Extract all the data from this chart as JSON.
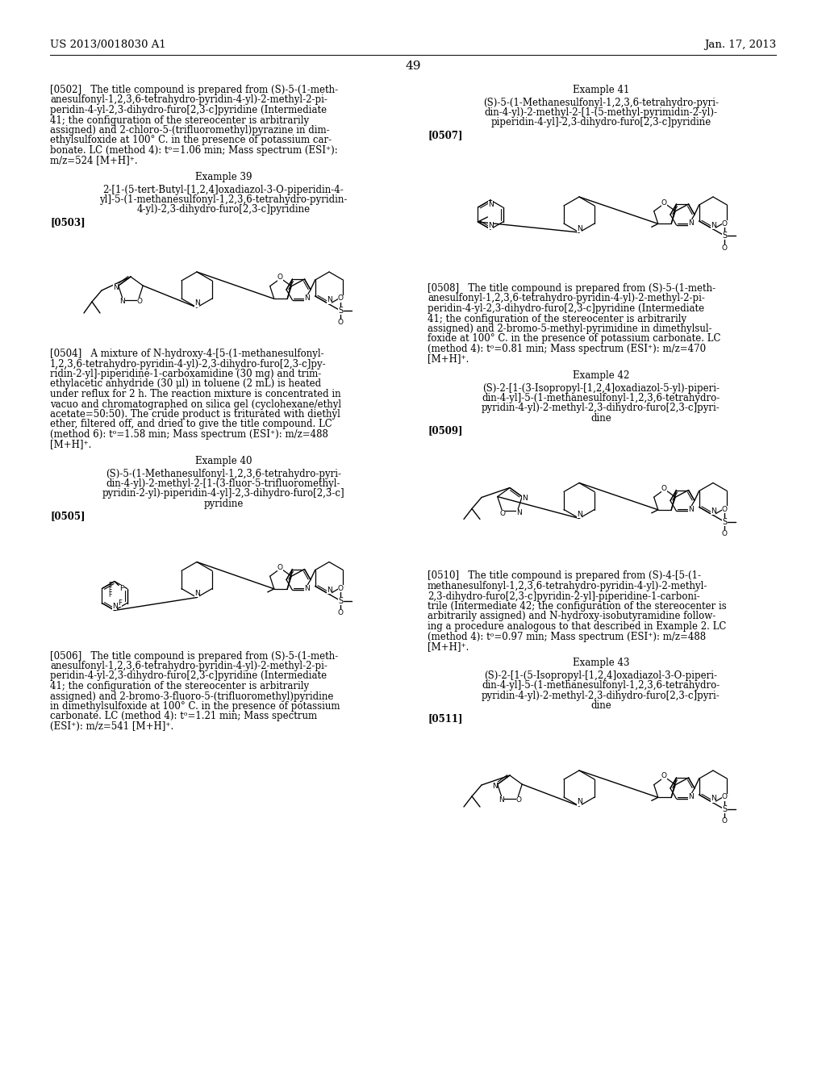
{
  "background_color": "#ffffff",
  "header_left": "US 2013/0018030 A1",
  "header_right": "Jan. 17, 2013",
  "page_number": "49"
}
